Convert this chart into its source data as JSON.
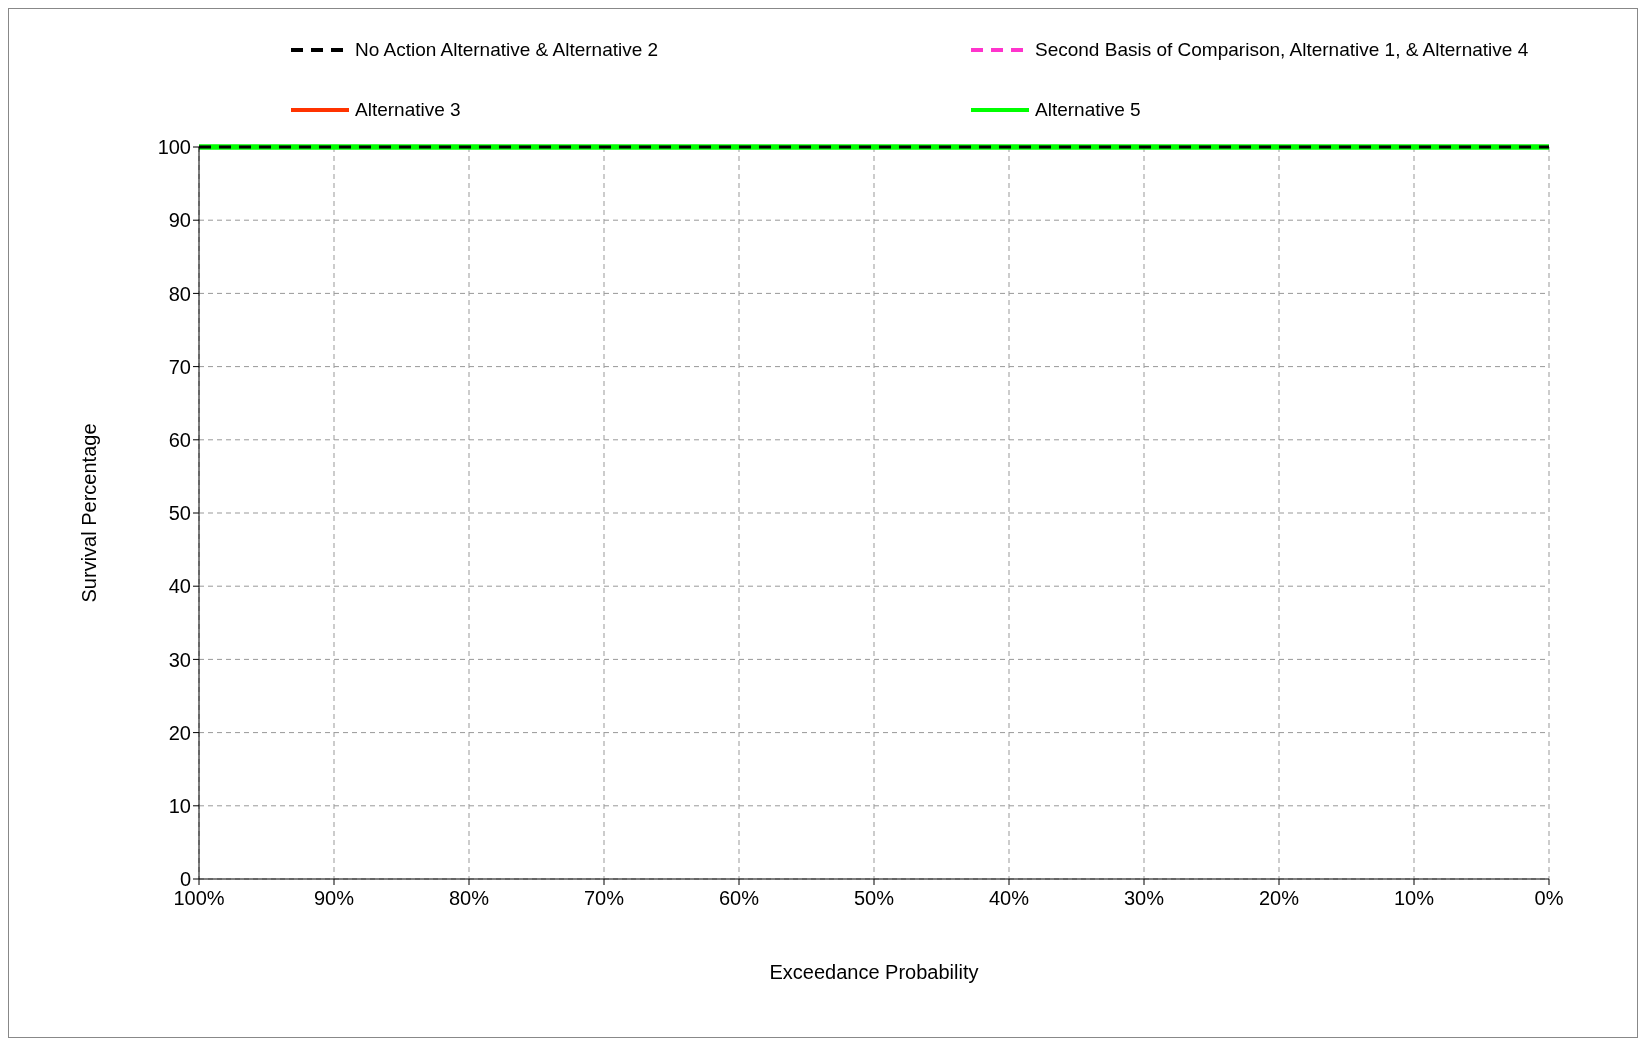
{
  "chart_data": {
    "type": "line",
    "xlabel": "Exceedance Probability",
    "ylabel": "Survival Percentage",
    "xlim": [
      100,
      0
    ],
    "xticks": [
      {
        "value": 100,
        "label": "100%"
      },
      {
        "value": 90,
        "label": "90%"
      },
      {
        "value": 80,
        "label": "80%"
      },
      {
        "value": 70,
        "label": "70%"
      },
      {
        "value": 60,
        "label": "60%"
      },
      {
        "value": 50,
        "label": "50%"
      },
      {
        "value": 40,
        "label": "40%"
      },
      {
        "value": 30,
        "label": "30%"
      },
      {
        "value": 20,
        "label": "20%"
      },
      {
        "value": 10,
        "label": "10%"
      },
      {
        "value": 0,
        "label": "0%"
      }
    ],
    "ylim": [
      0,
      100
    ],
    "yticks": [
      0,
      10,
      20,
      30,
      40,
      50,
      60,
      70,
      80,
      90,
      100
    ],
    "grid": true,
    "legend": "top",
    "marker": "none",
    "x": [
      100,
      0
    ],
    "series": [
      {
        "name": "No Action Alternative & Alternative 2",
        "color": "#000000",
        "line_style": "dashed",
        "values": [
          100,
          100
        ]
      },
      {
        "name": "Second Basis of Comparison, Alternative 1, & Alternative 4",
        "color": "#ff33cc",
        "line_style": "dashed",
        "values": [
          null,
          null
        ]
      },
      {
        "name": "Alternative 3",
        "color": "#ff3300",
        "line_style": "solid",
        "values": [
          null,
          null
        ]
      },
      {
        "name": "Alternative 5",
        "color": "#00ff00",
        "line_style": "solid",
        "values": [
          100,
          100
        ]
      }
    ]
  }
}
